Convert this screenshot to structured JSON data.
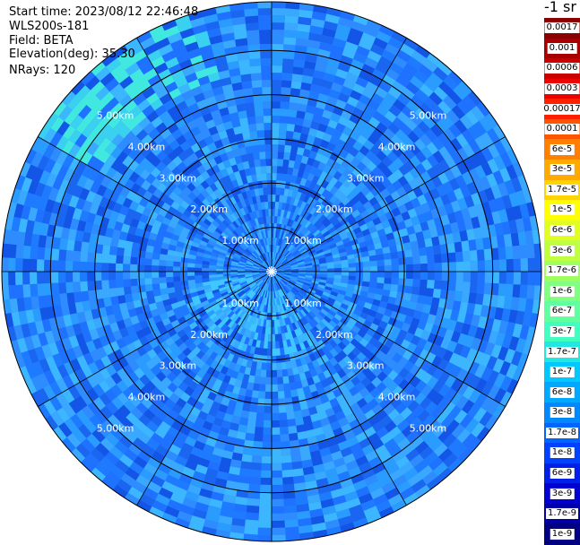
{
  "info": {
    "start_time": "Start time: 2023/08/12 22:46:48",
    "system": "WLS200s-181",
    "field": "Field: BETA",
    "elevation": "Elevation(deg): 35.30",
    "nrays": "NRays: 120"
  },
  "colorbar": {
    "unit_title": "-1 sr",
    "labels": [
      "0.0017",
      "0.001",
      "0.0006",
      "0.0003",
      "0.00017",
      "0.0001",
      "6e-5",
      "3e-5",
      "1.7e-5",
      "1e-5",
      "6e-6",
      "3e-6",
      "1.7e-6",
      "1e-6",
      "6e-7",
      "3e-7",
      "1.7e-7",
      "1e-7",
      "6e-8",
      "3e-8",
      "1.7e-8",
      "1e-8",
      "6e-9",
      "3e-9",
      "1.7e-9",
      "1e-9"
    ],
    "colors": [
      "#8b0000",
      "#a80000",
      "#c80000",
      "#ee0000",
      "#ff2000",
      "#ff5500",
      "#ff8000",
      "#ffaa00",
      "#ffd400",
      "#ffff00",
      "#e0ff20",
      "#c0ff40",
      "#a0ff60",
      "#80ff80",
      "#60ffa0",
      "#40ffc0",
      "#20e8e0",
      "#00c8ff",
      "#00a8ff",
      "#0088ff",
      "#0064ff",
      "#0040ff",
      "#0020e8",
      "#0000d0",
      "#0000a8",
      "#000080"
    ]
  },
  "chart_data": {
    "type": "heatmap",
    "projection": "polar-ppi",
    "range_unit": "km",
    "range_rings_km": [
      1,
      2,
      3,
      4,
      5,
      6.1
    ],
    "ring_labels": [
      "1.00km",
      "2.00km",
      "3.00km",
      "4.00km",
      "5.00km"
    ],
    "ray_spokes_deg": [
      0,
      30,
      60,
      90,
      120,
      150,
      180,
      210,
      240,
      270,
      300,
      330
    ],
    "nrays": 120,
    "value_range": [
      1e-09,
      0.0017
    ],
    "typical_value": "3e-8 to 1e-7",
    "enhanced_sector": "north-west near edge (~1.7e-7 to 3e-7)"
  }
}
